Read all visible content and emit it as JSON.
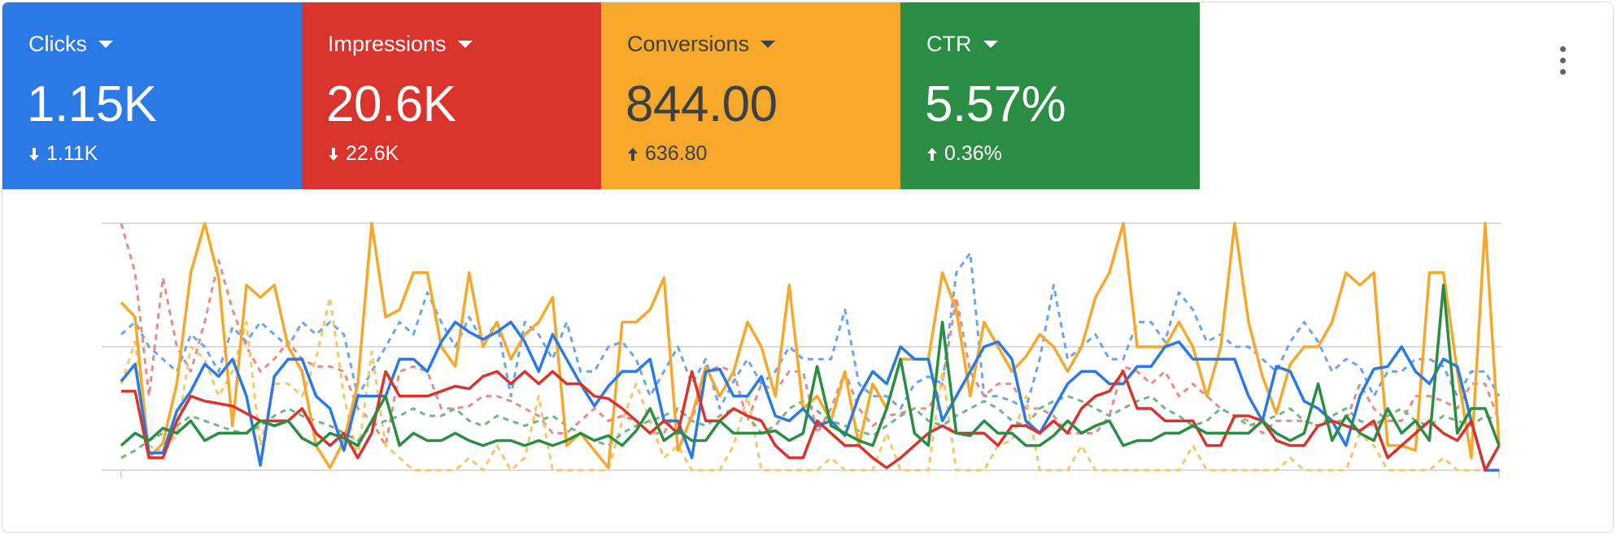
{
  "metrics": [
    {
      "name": "Clicks",
      "value": "1.15K",
      "delta": "1.11K",
      "direction": "down",
      "color": "#2a79e4",
      "text_color": "#ffffff"
    },
    {
      "name": "Impressions",
      "value": "20.6K",
      "delta": "22.6K",
      "direction": "down",
      "color": "#d9342b",
      "text_color": "#ffffff"
    },
    {
      "name": "Conversions",
      "value": "844.00",
      "delta": "636.80",
      "direction": "up",
      "color": "#f6a82a",
      "text_color": "#3c4043"
    },
    {
      "name": "CTR",
      "value": "5.57%",
      "delta": "0.36%",
      "direction": "up",
      "color": "#2a8d43",
      "text_color": "#ffffff"
    }
  ],
  "menu_icon": "more-vert-icon",
  "chart_data": {
    "type": "line",
    "x_count": 100,
    "ylim": [
      0,
      100
    ],
    "grid": "horizontal",
    "grid_values": [
      0,
      50,
      100
    ],
    "series": [
      {
        "color": "#f6a82a",
        "style": "solid",
        "values": [
          68,
          62,
          5,
          11,
          35,
          80,
          100,
          78,
          18,
          75,
          70,
          75,
          50,
          40,
          10,
          1,
          12,
          35,
          100,
          62,
          65,
          80,
          80,
          50,
          42,
          80,
          50,
          60,
          45,
          55,
          60,
          70,
          10,
          15,
          8,
          1,
          60,
          60,
          65,
          78,
          8,
          22,
          42,
          30,
          40,
          60,
          50,
          30,
          75,
          25,
          30,
          20,
          40,
          10,
          35,
          25,
          45,
          45,
          45,
          80,
          65,
          30,
          60,
          50,
          40,
          46,
          55,
          50,
          40,
          50,
          70,
          80,
          100,
          50,
          50,
          50,
          60,
          50,
          30,
          50,
          100,
          60,
          38,
          23,
          43,
          50,
          50,
          60,
          80,
          75,
          80,
          10,
          10,
          8,
          80,
          80,
          40,
          5,
          100,
          10
        ]
      },
      {
        "color": "#2a79e4",
        "style": "solid",
        "values": [
          36,
          43,
          7,
          7,
          24,
          32,
          43,
          38,
          45,
          30,
          2,
          38,
          45,
          45,
          30,
          25,
          8,
          30,
          30,
          30,
          45,
          45,
          40,
          52,
          60,
          56,
          53,
          56,
          60,
          52,
          40,
          55,
          45,
          35,
          26,
          34,
          40,
          40,
          45,
          20,
          20,
          5,
          40,
          41,
          30,
          30,
          38,
          22,
          20,
          25,
          18,
          20,
          14,
          30,
          40,
          35,
          50,
          45,
          45,
          20,
          30,
          40,
          50,
          52,
          45,
          20,
          15,
          25,
          35,
          40,
          40,
          35,
          35,
          42,
          42,
          50,
          52,
          45,
          45,
          45,
          45,
          30,
          20,
          42,
          40,
          28,
          25,
          20,
          10,
          30,
          41,
          42,
          50,
          40,
          35,
          45,
          42,
          20,
          0,
          0
        ]
      },
      {
        "color": "#d9342b",
        "style": "solid",
        "values": [
          32,
          32,
          5,
          5,
          20,
          30,
          28,
          27,
          26,
          23,
          20,
          20,
          20,
          25,
          15,
          10,
          15,
          5,
          15,
          40,
          30,
          30,
          30,
          32,
          34,
          33,
          38,
          40,
          35,
          40,
          35,
          40,
          35,
          35,
          30,
          29,
          25,
          20,
          15,
          20,
          15,
          40,
          20,
          20,
          25,
          22,
          20,
          10,
          5,
          5,
          20,
          15,
          10,
          10,
          5,
          1,
          5,
          10,
          15,
          18,
          15,
          15,
          15,
          10,
          18,
          18,
          15,
          20,
          15,
          25,
          30,
          32,
          40,
          25,
          25,
          20,
          20,
          20,
          10,
          10,
          22,
          22,
          20,
          12,
          10,
          10,
          18,
          20,
          18,
          16,
          20,
          5,
          10,
          15,
          20,
          15,
          12,
          20,
          0,
          10
        ]
      },
      {
        "color": "#2a8d43",
        "style": "solid",
        "values": [
          10,
          15,
          12,
          17,
          15,
          20,
          12,
          15,
          15,
          15,
          20,
          18,
          20,
          13,
          10,
          15,
          13,
          10,
          20,
          30,
          10,
          15,
          12,
          12,
          15,
          12,
          10,
          12,
          12,
          10,
          12,
          10,
          12,
          15,
          12,
          14,
          10,
          16,
          25,
          12,
          16,
          12,
          12,
          20,
          15,
          15,
          15,
          16,
          12,
          15,
          42,
          18,
          15,
          12,
          10,
          25,
          45,
          15,
          10,
          60,
          15,
          14,
          20,
          15,
          15,
          10,
          10,
          14,
          20,
          15,
          18,
          20,
          10,
          12,
          12,
          15,
          15,
          18,
          15,
          15,
          15,
          15,
          20,
          15,
          12,
          15,
          35,
          12,
          22,
          15,
          12,
          25,
          15,
          20,
          12,
          75,
          15,
          25,
          25,
          10
        ]
      },
      {
        "color": "#6ca3ee",
        "style": "dashed",
        "values": [
          55,
          60,
          50,
          45,
          40,
          55,
          50,
          40,
          58,
          52,
          60,
          55,
          50,
          60,
          55,
          60,
          55,
          30,
          40,
          50,
          60,
          55,
          72,
          60,
          50,
          62,
          52,
          60,
          30,
          60,
          55,
          45,
          60,
          40,
          40,
          50,
          52,
          45,
          30,
          40,
          50,
          35,
          45,
          25,
          36,
          45,
          35,
          40,
          50,
          45,
          45,
          45,
          65,
          35,
          30,
          30,
          25,
          35,
          38,
          35,
          80,
          88,
          30,
          30,
          28,
          25,
          45,
          75,
          45,
          50,
          55,
          45,
          45,
          60,
          60,
          52,
          72,
          65,
          52,
          55,
          50,
          50,
          45,
          40,
          52,
          60,
          52,
          40,
          45,
          42,
          30,
          40,
          40,
          45,
          45,
          42,
          30,
          40,
          40,
          30
        ]
      },
      {
        "color": "#e48c88",
        "style": "dashed",
        "values": [
          100,
          80,
          30,
          78,
          50,
          40,
          60,
          85,
          65,
          50,
          40,
          45,
          52,
          45,
          42,
          42,
          40,
          25,
          20,
          10,
          40,
          42,
          40,
          25,
          25,
          26,
          30,
          30,
          28,
          25,
          22,
          15,
          15,
          20,
          25,
          20,
          22,
          20,
          15,
          15,
          25,
          20,
          40,
          42,
          40,
          20,
          35,
          32,
          40,
          40,
          15,
          25,
          40,
          25,
          18,
          22,
          23,
          25,
          25,
          35,
          70,
          40,
          30,
          35,
          35,
          25,
          25,
          22,
          15,
          15,
          15,
          22,
          42,
          40,
          35,
          40,
          30,
          35,
          30,
          25,
          22,
          20,
          15,
          20,
          20,
          20,
          18,
          20,
          20,
          35,
          25,
          20,
          20,
          30,
          30,
          28,
          25,
          35,
          35,
          20
        ]
      },
      {
        "color": "#f5c66a",
        "style": "dashed",
        "values": [
          35,
          52,
          10,
          7,
          15,
          50,
          45,
          30,
          40,
          60,
          10,
          35,
          35,
          30,
          45,
          70,
          30,
          5,
          48,
          10,
          5,
          0,
          0,
          0,
          0,
          5,
          0,
          10,
          0,
          5,
          30,
          0,
          0,
          0,
          0,
          0,
          20,
          35,
          20,
          5,
          10,
          0,
          0,
          0,
          10,
          30,
          0,
          0,
          0,
          0,
          0,
          5,
          0,
          0,
          0,
          15,
          0,
          0,
          0,
          40,
          0,
          0,
          0,
          10,
          12,
          30,
          0,
          0,
          0,
          10,
          0,
          0,
          0,
          0,
          0,
          0,
          0,
          10,
          0,
          0,
          0,
          0,
          0,
          0,
          5,
          0,
          0,
          0,
          0,
          15,
          10,
          0,
          0,
          0,
          0,
          5,
          0,
          0,
          0,
          0
        ]
      },
      {
        "color": "#74b484",
        "style": "dashed",
        "values": [
          5,
          8,
          12,
          15,
          18,
          22,
          20,
          18,
          16,
          15,
          18,
          22,
          25,
          22,
          20,
          18,
          15,
          12,
          18,
          20,
          22,
          25,
          22,
          22,
          25,
          20,
          18,
          22,
          20,
          18,
          20,
          22,
          18,
          15,
          12,
          10,
          15,
          18,
          20,
          22,
          25,
          20,
          18,
          22,
          25,
          22,
          15,
          18,
          25,
          28,
          24,
          20,
          18,
          16,
          14,
          18,
          22,
          25,
          20,
          18,
          22,
          25,
          28,
          25,
          20,
          18,
          25,
          28,
          30,
          28,
          25,
          22,
          25,
          28,
          30,
          25,
          22,
          18,
          20,
          25,
          22,
          18,
          20,
          22,
          25,
          20,
          18,
          22,
          25,
          20,
          18,
          22,
          25,
          20,
          18,
          22,
          20,
          18,
          22,
          20
        ]
      }
    ]
  }
}
